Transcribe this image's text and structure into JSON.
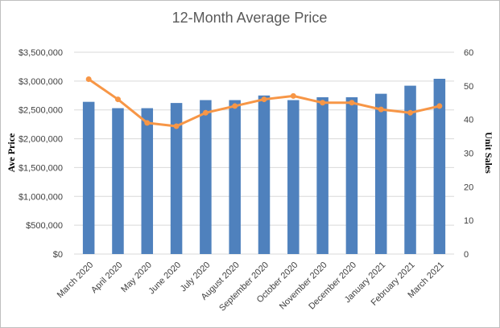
{
  "chart_data": {
    "type": "bar",
    "title": "12-Month Average Price",
    "ylabel": "Ave Price",
    "y2label": "Unit Sales",
    "categories": [
      "March 2020",
      "April 2020",
      "May 2020",
      "June 2020",
      "July 2020",
      "August 2020",
      "September 2020",
      "October 2020",
      "November 2020",
      "December 2020",
      "January 2021",
      "February 2021",
      "March 2021"
    ],
    "series": [
      {
        "type": "bar",
        "axis": "left",
        "color": "#4f81bd",
        "values": [
          2640000,
          2530000,
          2530000,
          2620000,
          2670000,
          2670000,
          2750000,
          2670000,
          2720000,
          2720000,
          2780000,
          2920000,
          3040000
        ]
      },
      {
        "type": "line",
        "axis": "right",
        "color": "#f79646",
        "values": [
          52,
          46,
          39,
          38,
          42,
          44,
          46,
          47,
          45,
          45,
          43,
          42,
          44
        ]
      }
    ],
    "ylim": [
      0,
      3500000
    ],
    "y2lim": [
      0,
      60
    ],
    "y_ticks": [
      "$0",
      "$500,000",
      "$1,000,000",
      "$1,500,000",
      "$2,000,000",
      "$2,500,000",
      "$3,000,000",
      "$3,500,000"
    ],
    "y2_ticks": [
      "0",
      "10",
      "20",
      "30",
      "40",
      "50",
      "60"
    ],
    "grid": true
  }
}
